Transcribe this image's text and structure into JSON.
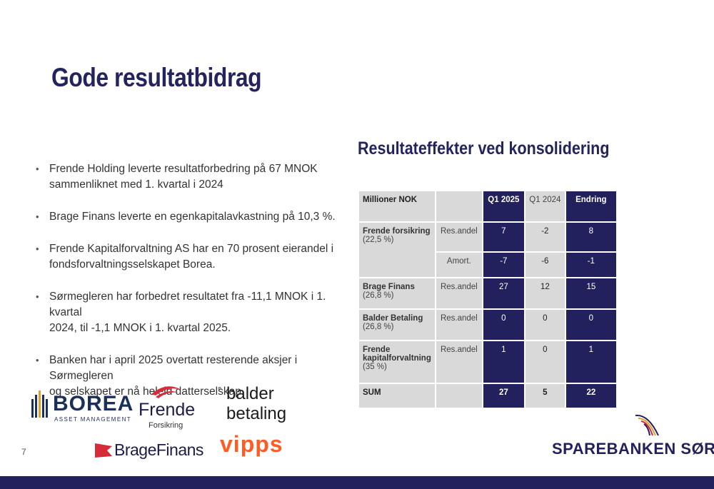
{
  "page": {
    "title": "Gode resultatbidrag",
    "subtitle": "Resultateffekter ved konsolidering",
    "page_number": "7"
  },
  "bullets": [
    {
      "line1": "Frende Holding leverte resultatforbedring på 67 MNOK",
      "line2": "sammenliknet med 1. kvartal i 2024"
    },
    {
      "line1": "Brage Finans leverte en egenkapitalavkastning på 10,3 %.",
      "line2": ""
    },
    {
      "line1": "Frende Kapitalforvaltning AS har en 70 prosent eierandel i",
      "line2": "fondsforvaltningsselskapet Borea."
    },
    {
      "line1": "Sørmegleren har forbedret resultatet fra -11,1 MNOK i 1. kvartal",
      "line2": "2024, til -1,1 MNOK i 1. kvartal 2025."
    },
    {
      "line1": "Banken har i april 2025 overtatt resterende aksjer i Sørmegleren",
      "line2": "og selskapet er nå heleid datterselskap."
    }
  ],
  "table": {
    "headers": {
      "label": "Millioner NOK",
      "q1_2025": "Q1 2025",
      "q1_2024": "Q1 2024",
      "change": "Endring"
    },
    "rows": [
      {
        "name": "Frende forsikring",
        "share": "(22,5 %)",
        "type": "Res.andel",
        "q1_2025": "7",
        "q1_2024": "-2",
        "change": "8"
      },
      {
        "name": "",
        "share": "",
        "type": "Amort.",
        "q1_2025": "-7",
        "q1_2024": "-6",
        "change": "-1"
      },
      {
        "name": "Brage Finans",
        "share": "(26,8 %)",
        "type": "Res.andel",
        "q1_2025": "27",
        "q1_2024": "12",
        "change": "15"
      },
      {
        "name": "Balder Betaling",
        "share": "(26,8 %)",
        "type": "Res.andel",
        "q1_2025": "0",
        "q1_2024": "0",
        "change": "0"
      },
      {
        "name": "Frende kapitalforvaltning",
        "share": "(35 %)",
        "type": "Res.andel",
        "q1_2025": "1",
        "q1_2024": "0",
        "change": "1"
      }
    ],
    "sum": {
      "label": "SUM",
      "q1_2025": "27",
      "q1_2024": "5",
      "change": "22"
    }
  },
  "logos": {
    "borea": {
      "name": "BOREA",
      "sub": "ASSET MANAGEMENT"
    },
    "frende": {
      "name": "Frende",
      "sub": "Forsikring"
    },
    "balder": {
      "line1": "balder",
      "line2": "betaling"
    },
    "brage": {
      "name": "BrageFinans"
    },
    "vipps": {
      "name": "vipps"
    },
    "sparebanken": {
      "name": "SPAREBANKEN SØR"
    }
  },
  "colors": {
    "navy": "#23205e",
    "cell_gray": "#d9d9d9",
    "vipps_orange": "#ff5b24"
  }
}
